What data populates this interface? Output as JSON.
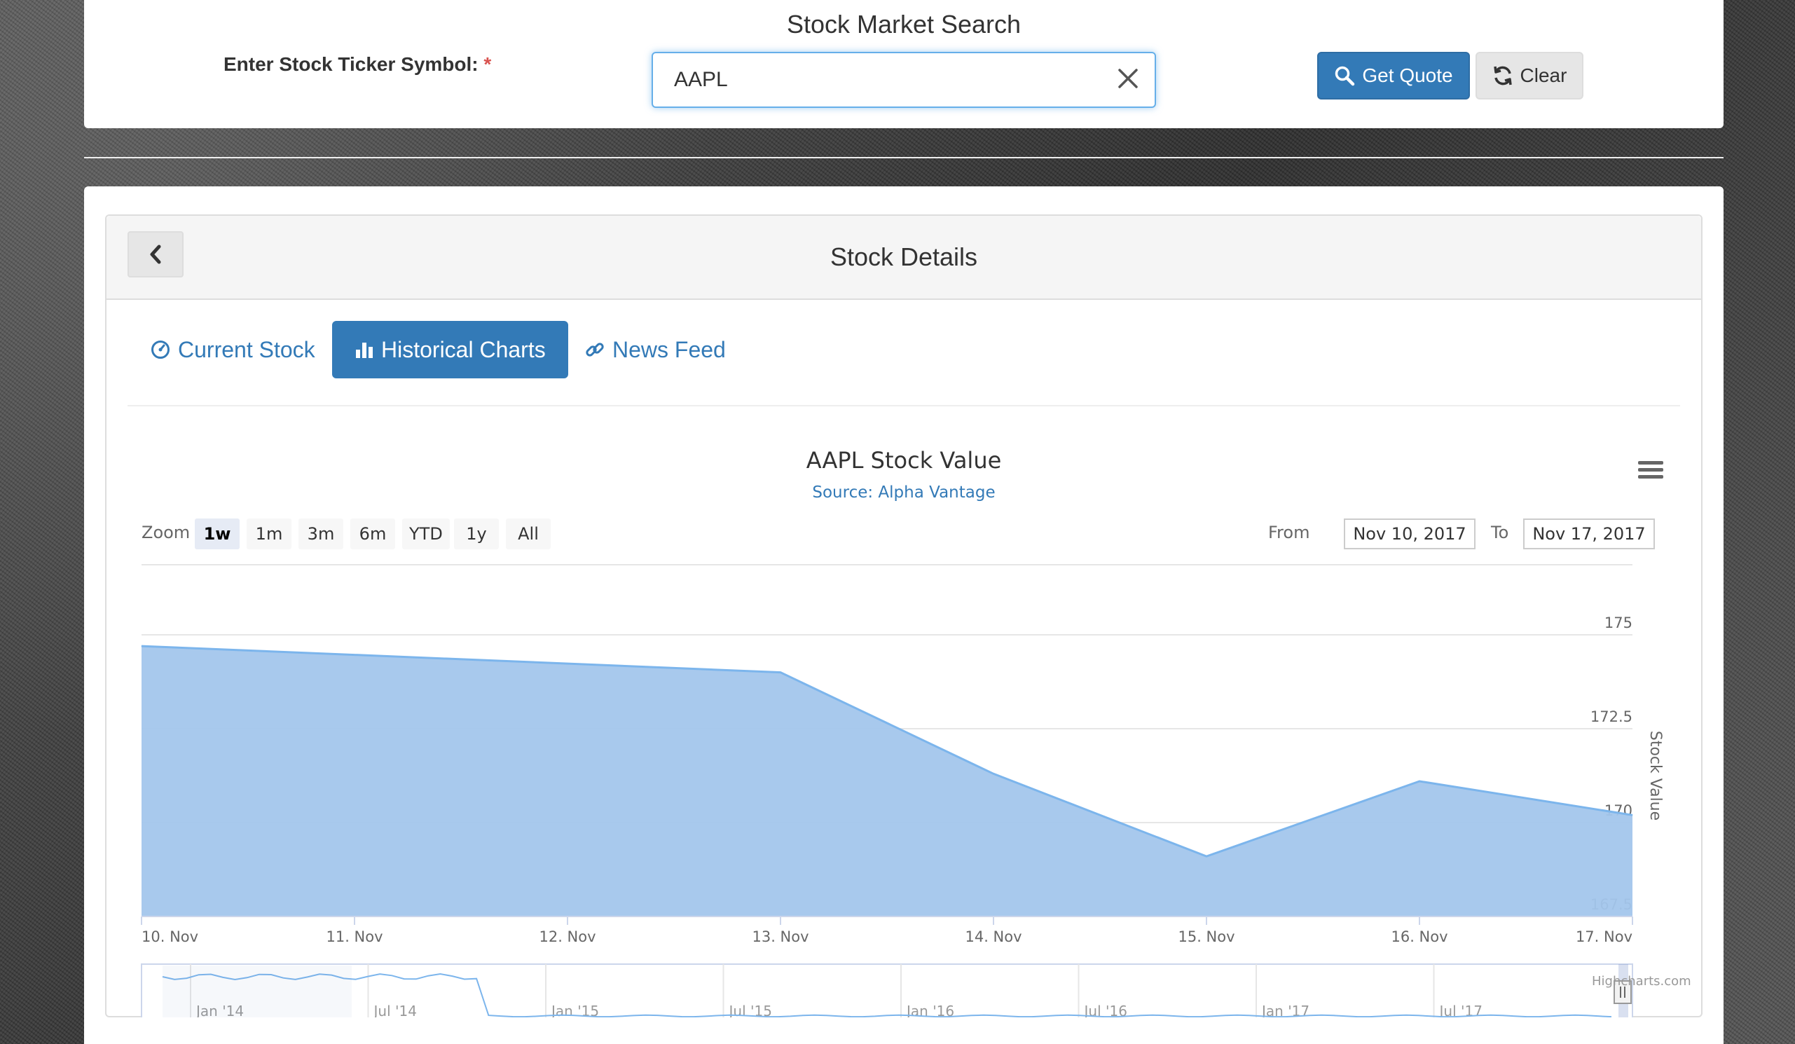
{
  "search": {
    "title": "Stock Market Search",
    "label": "Enter Stock Ticker Symbol:",
    "required_mark": "*",
    "ticker_value": "AAPL",
    "get_quote_label": "Get Quote",
    "clear_label": "Clear"
  },
  "details": {
    "title": "Stock Details",
    "tabs": [
      {
        "label": "Current Stock",
        "icon": "gauge-icon",
        "active": false
      },
      {
        "label": "Historical Charts",
        "icon": "bar-chart-icon",
        "active": true
      },
      {
        "label": "News Feed",
        "icon": "link-icon",
        "active": false
      }
    ]
  },
  "range_selector": {
    "zoom_label": "Zoom",
    "buttons": [
      "1w",
      "1m",
      "3m",
      "6m",
      "YTD",
      "1y",
      "All"
    ],
    "selected": "1w",
    "from_label": "From",
    "from_value": "Nov 10, 2017",
    "to_label": "To",
    "to_value": "Nov 17, 2017"
  },
  "credits": "Highcharts.com",
  "colors": {
    "primary": "#337ab7",
    "area_fill": "#a3c6ec",
    "area_line": "#7cb5ec",
    "required": "#d9534f"
  },
  "chart_data": {
    "type": "area",
    "title": "AAPL Stock Value",
    "subtitle": "Source: Alpha Vantage",
    "ylabel": "Stock Value",
    "ylim": [
      167.5,
      175
    ],
    "yticks": [
      167.5,
      170,
      172.5,
      175
    ],
    "x_labels": [
      "10. Nov",
      "11. Nov",
      "12. Nov",
      "13. Nov",
      "14. Nov",
      "15. Nov",
      "16. Nov",
      "17. Nov"
    ],
    "series": [
      {
        "values": [
          {
            "x": "10. Nov",
            "y": 174.7
          },
          {
            "x": "13. Nov",
            "y": 174.0
          },
          {
            "x": "14. Nov",
            "y": 171.3
          },
          {
            "x": "15. Nov",
            "y": 169.1
          },
          {
            "x": "16. Nov",
            "y": 171.1
          },
          {
            "x": "17. Nov",
            "y": 170.2
          }
        ]
      }
    ],
    "navigator_labels": [
      "Jan '14",
      "Jul '14",
      "Jan '15",
      "Jul '15",
      "Jan '16",
      "Jul '16",
      "Jan '17",
      "Jul '17"
    ]
  }
}
